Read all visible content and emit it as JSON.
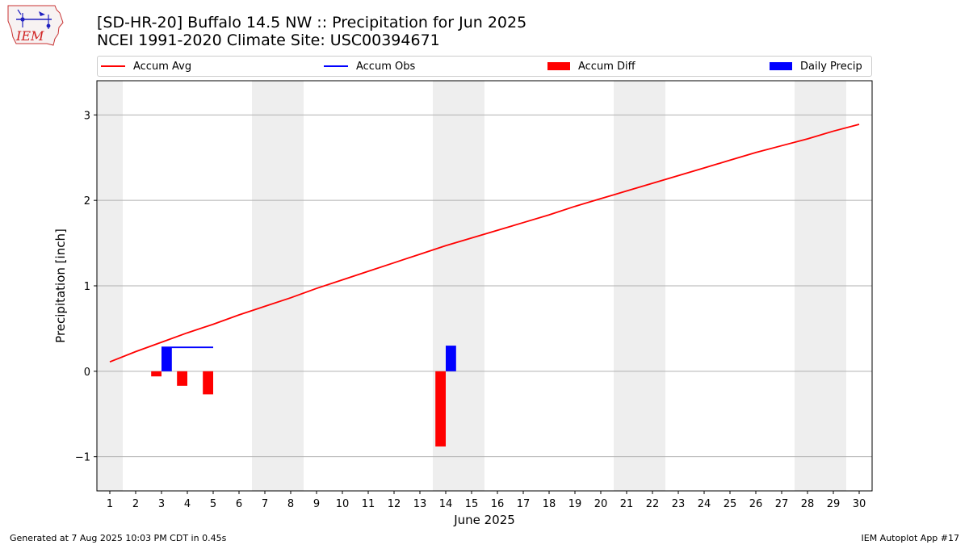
{
  "header": {
    "title_line1": "[SD-HR-20] Buffalo 14.5 NW :: Precipitation for Jun 2025",
    "title_line2": "NCEI 1991-2020 Climate Site: USC00394671",
    "logo_text": "IEM"
  },
  "legend": {
    "items": [
      {
        "label": "Accum Avg",
        "color": "#ff0000",
        "kind": "line"
      },
      {
        "label": "Accum Obs",
        "color": "#0000ff",
        "kind": "line"
      },
      {
        "label": "Accum Diff",
        "color": "#ff0000",
        "kind": "box"
      },
      {
        "label": "Daily Precip",
        "color": "#0000ff",
        "kind": "box"
      }
    ]
  },
  "footer": {
    "left": "Generated at 7 Aug 2025 10:03 PM CDT in 0.45s",
    "right": "IEM Autoplot App #17"
  },
  "chart_data": {
    "type": "bar",
    "xlabel": "June 2025",
    "ylabel": "Precipitation [inch]",
    "xlim": [
      0.5,
      30.5
    ],
    "ylim": [
      -1.4,
      3.4
    ],
    "yticks": [
      -1,
      0,
      1,
      2,
      3
    ],
    "ytick_labels": [
      "−1",
      "0",
      "1",
      "2",
      "3"
    ],
    "days": [
      1,
      2,
      3,
      4,
      5,
      6,
      7,
      8,
      9,
      10,
      11,
      12,
      13,
      14,
      15,
      16,
      17,
      18,
      19,
      20,
      21,
      22,
      23,
      24,
      25,
      26,
      27,
      28,
      29,
      30
    ],
    "weekend_bands": [
      [
        0.5,
        1.5
      ],
      [
        6.5,
        8.5
      ],
      [
        13.5,
        15.5
      ],
      [
        20.5,
        22.5
      ],
      [
        27.5,
        29.5
      ]
    ],
    "grid": "horizontal",
    "series": [
      {
        "name": "Accum Avg",
        "type": "line",
        "color": "#ff0000",
        "x": [
          1,
          2,
          3,
          4,
          5,
          6,
          7,
          8,
          9,
          10,
          11,
          12,
          13,
          14,
          15,
          16,
          17,
          18,
          19,
          20,
          21,
          22,
          23,
          24,
          25,
          26,
          27,
          28,
          29,
          30
        ],
        "values": [
          0.11,
          0.23,
          0.34,
          0.45,
          0.55,
          0.66,
          0.76,
          0.86,
          0.97,
          1.07,
          1.17,
          1.27,
          1.37,
          1.47,
          1.56,
          1.65,
          1.74,
          1.83,
          1.93,
          2.02,
          2.11,
          2.2,
          2.29,
          2.38,
          2.47,
          2.56,
          2.64,
          2.72,
          2.81,
          2.89
        ]
      },
      {
        "name": "Accum Obs",
        "type": "line",
        "color": "#0000ff",
        "x": [
          3,
          4,
          5
        ],
        "values": [
          0.28,
          0.28,
          0.28
        ]
      },
      {
        "name": "Accum Diff",
        "type": "bar",
        "color": "#ff0000",
        "x": [
          3,
          4,
          5,
          14
        ],
        "values": [
          -0.06,
          -0.17,
          -0.27,
          -0.88
        ]
      },
      {
        "name": "Daily Precip",
        "type": "bar",
        "color": "#0000ff",
        "x": [
          3,
          14
        ],
        "values": [
          0.28,
          0.3
        ]
      }
    ]
  }
}
